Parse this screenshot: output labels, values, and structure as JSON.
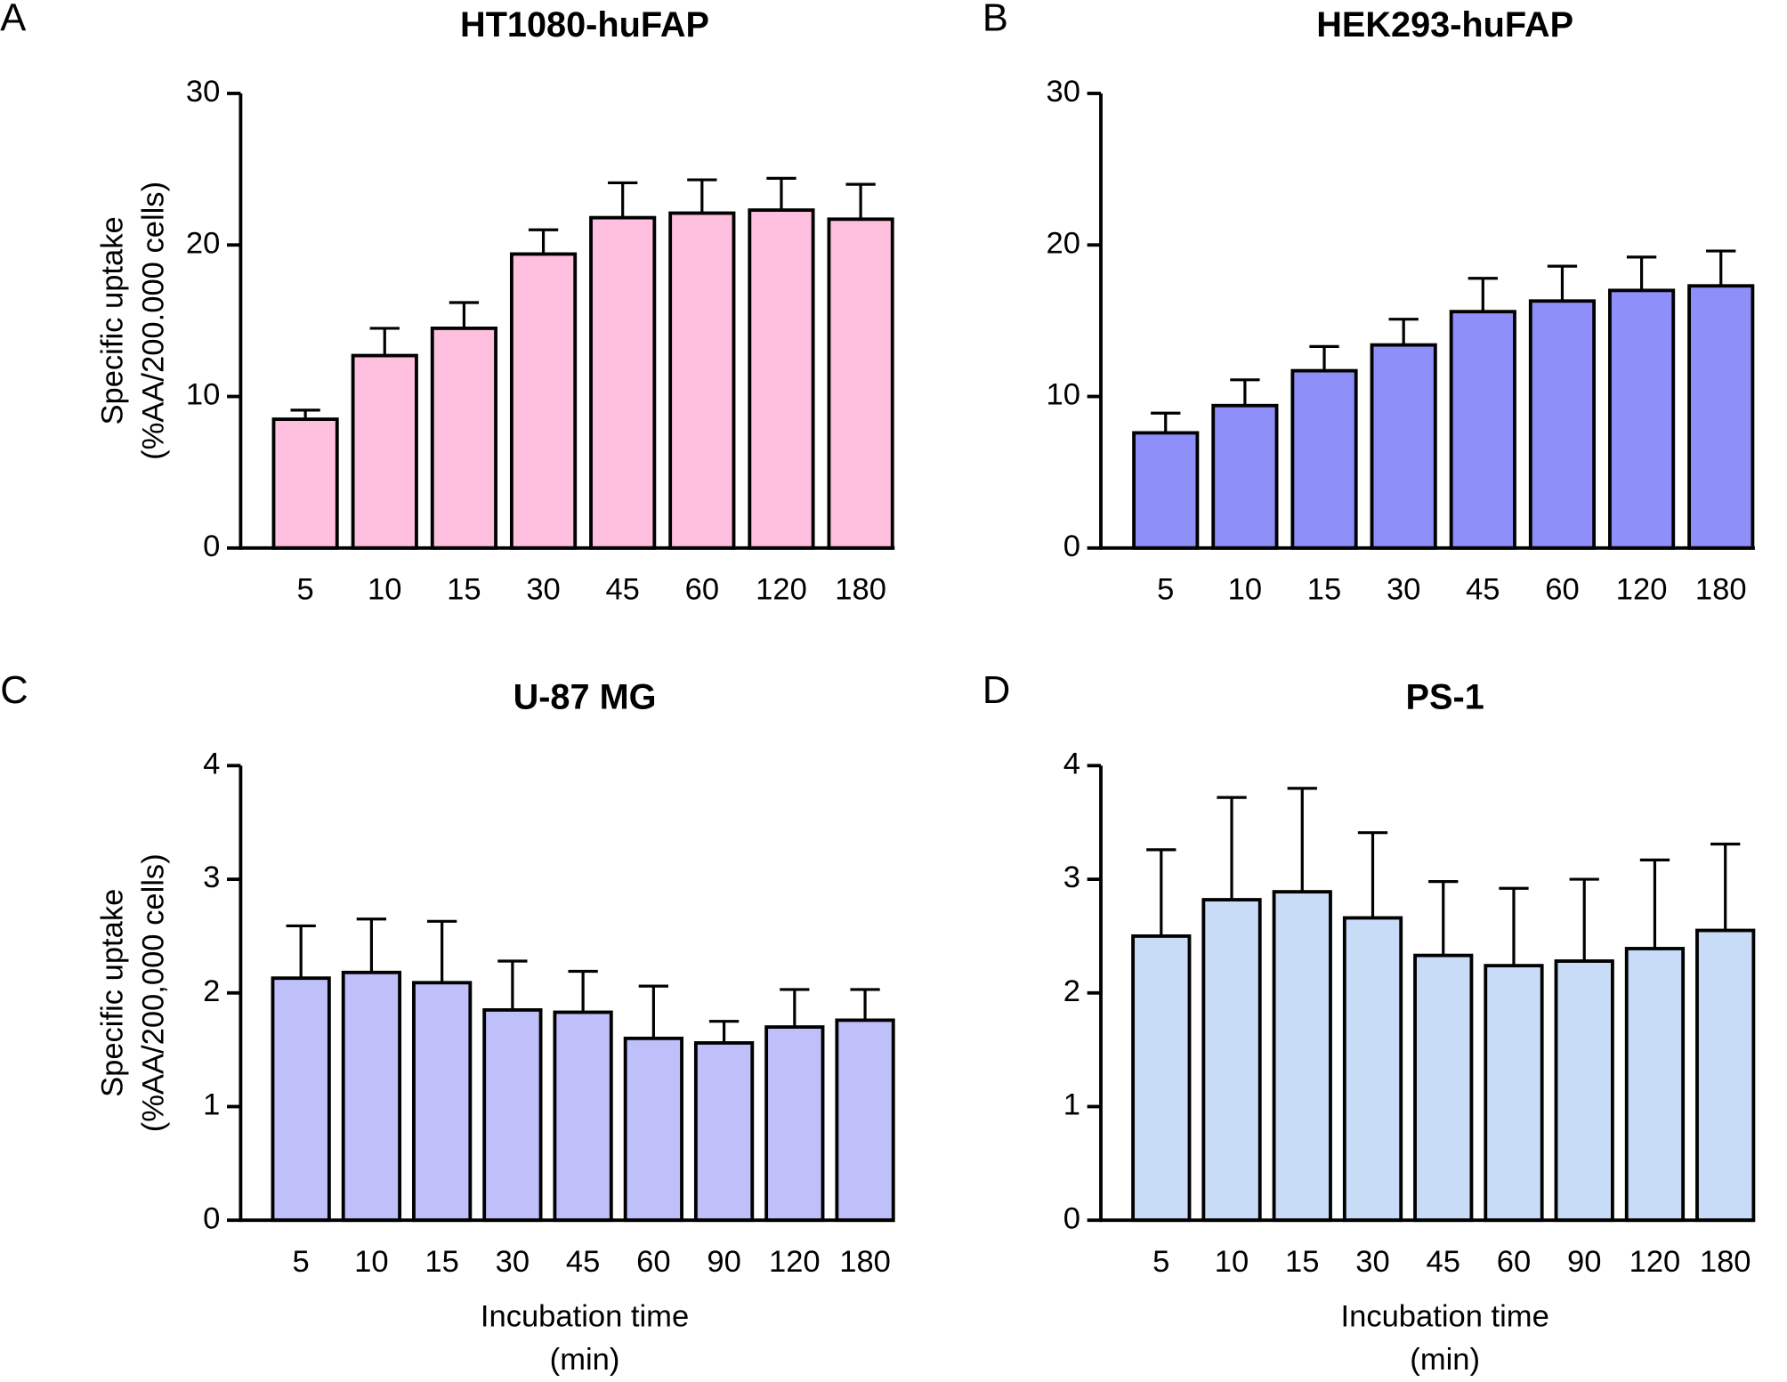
{
  "chart_data": [
    {
      "type": "bar",
      "panel": "A",
      "title": "HT1080-huFAP",
      "ylabel": [
        "Specific uptake",
        "(%AA/200.000 cells)"
      ],
      "categories": [
        "5",
        "10",
        "15",
        "30",
        "45",
        "60",
        "120",
        "180"
      ],
      "values": [
        8.5,
        12.7,
        14.5,
        19.4,
        21.8,
        22.1,
        22.3,
        21.7
      ],
      "errors": [
        0.6,
        1.8,
        1.7,
        1.6,
        2.3,
        2.2,
        2.1,
        2.3
      ],
      "color": "#ffbfdf",
      "ylim": [
        0,
        30
      ],
      "yticks": [
        0,
        10,
        20,
        30
      ]
    },
    {
      "type": "bar",
      "panel": "B",
      "title": "HEK293-huFAP",
      "categories": [
        "5",
        "10",
        "15",
        "30",
        "45",
        "60",
        "120",
        "180"
      ],
      "values": [
        7.6,
        9.4,
        11.7,
        13.4,
        15.6,
        16.3,
        17.0,
        17.3
      ],
      "errors": [
        1.3,
        1.7,
        1.6,
        1.7,
        2.2,
        2.3,
        2.2,
        2.3
      ],
      "color": "#8f8ffa",
      "ylim": [
        0,
        30
      ],
      "yticks": [
        0,
        10,
        20,
        30
      ]
    },
    {
      "type": "bar",
      "panel": "C",
      "title": "U-87 MG",
      "ylabel": [
        "Specific uptake",
        "(%AA/200,000 cells)"
      ],
      "xlabel": [
        "Incubation time",
        "(min)"
      ],
      "categories": [
        "5",
        "10",
        "15",
        "30",
        "45",
        "60",
        "90",
        "120",
        "180"
      ],
      "values": [
        2.13,
        2.18,
        2.09,
        1.85,
        1.83,
        1.6,
        1.56,
        1.7,
        1.76
      ],
      "errors": [
        0.46,
        0.47,
        0.54,
        0.43,
        0.36,
        0.46,
        0.19,
        0.33,
        0.27
      ],
      "color": "#bfbffa",
      "ylim": [
        0,
        4
      ],
      "yticks": [
        0,
        1,
        2,
        3,
        4
      ]
    },
    {
      "type": "bar",
      "panel": "D",
      "title": "PS-1",
      "xlabel": [
        "Incubation time",
        "(min)"
      ],
      "categories": [
        "5",
        "10",
        "15",
        "30",
        "45",
        "60",
        "90",
        "120",
        "180"
      ],
      "values": [
        2.5,
        2.82,
        2.89,
        2.66,
        2.33,
        2.24,
        2.28,
        2.39,
        2.55
      ],
      "errors": [
        0.76,
        0.9,
        0.91,
        0.75,
        0.65,
        0.68,
        0.72,
        0.78,
        0.76
      ],
      "color": "#c9dcf7",
      "ylim": [
        0,
        4
      ],
      "yticks": [
        0,
        1,
        2,
        3,
        4
      ]
    }
  ]
}
